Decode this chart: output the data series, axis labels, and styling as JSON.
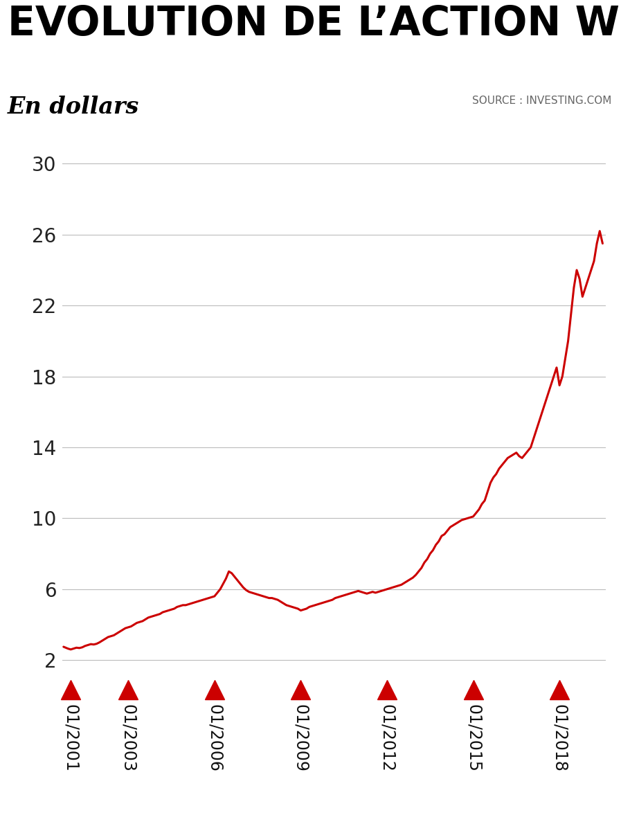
{
  "title": "EVOLUTION DE L’ACTION WDP",
  "subtitle": "En dollars",
  "source": "SOURCE : INVESTING.COM",
  "line_color": "#CC0000",
  "background_color": "#FFFFFF",
  "title_color": "#000000",
  "yticks": [
    2,
    6,
    10,
    14,
    18,
    22,
    26,
    30
  ],
  "ylim": [
    1.5,
    31.5
  ],
  "xlim_start": 2000.7,
  "xlim_end": 2019.6,
  "xtick_years": [
    2001,
    2003,
    2006,
    2009,
    2012,
    2015,
    2018
  ],
  "arrow_color": "#CC0000",
  "grid_color": "#BBBBBB",
  "time_points": [
    2000.75,
    2000.9,
    2001.0,
    2001.1,
    2001.2,
    2001.3,
    2001.4,
    2001.5,
    2001.6,
    2001.7,
    2001.8,
    2001.9,
    2002.0,
    2002.1,
    2002.2,
    2002.3,
    2002.4,
    2002.5,
    2002.6,
    2002.7,
    2002.8,
    2002.9,
    2003.0,
    2003.1,
    2003.2,
    2003.3,
    2003.4,
    2003.5,
    2003.6,
    2003.7,
    2003.8,
    2003.9,
    2004.0,
    2004.1,
    2004.2,
    2004.3,
    2004.4,
    2004.5,
    2004.6,
    2004.7,
    2004.8,
    2004.9,
    2005.0,
    2005.1,
    2005.2,
    2005.3,
    2005.4,
    2005.5,
    2005.6,
    2005.7,
    2005.8,
    2005.9,
    2006.0,
    2006.1,
    2006.2,
    2006.3,
    2006.4,
    2006.5,
    2006.6,
    2006.7,
    2006.8,
    2006.9,
    2007.0,
    2007.1,
    2007.2,
    2007.3,
    2007.4,
    2007.5,
    2007.6,
    2007.7,
    2007.8,
    2007.9,
    2008.0,
    2008.1,
    2008.2,
    2008.3,
    2008.4,
    2008.5,
    2008.6,
    2008.7,
    2008.8,
    2008.9,
    2009.0,
    2009.1,
    2009.2,
    2009.3,
    2009.4,
    2009.5,
    2009.6,
    2009.7,
    2009.8,
    2009.9,
    2010.0,
    2010.1,
    2010.2,
    2010.3,
    2010.4,
    2010.5,
    2010.6,
    2010.7,
    2010.8,
    2010.9,
    2011.0,
    2011.1,
    2011.2,
    2011.3,
    2011.4,
    2011.5,
    2011.6,
    2011.7,
    2011.8,
    2011.9,
    2012.0,
    2012.1,
    2012.2,
    2012.3,
    2012.4,
    2012.5,
    2012.6,
    2012.7,
    2012.8,
    2012.9,
    2013.0,
    2013.1,
    2013.2,
    2013.3,
    2013.4,
    2013.5,
    2013.6,
    2013.7,
    2013.8,
    2013.9,
    2014.0,
    2014.1,
    2014.2,
    2014.3,
    2014.4,
    2014.5,
    2014.6,
    2014.7,
    2014.8,
    2014.9,
    2015.0,
    2015.1,
    2015.2,
    2015.3,
    2015.4,
    2015.5,
    2015.6,
    2015.7,
    2015.8,
    2015.9,
    2016.0,
    2016.1,
    2016.2,
    2016.3,
    2016.4,
    2016.5,
    2016.6,
    2016.7,
    2016.8,
    2016.9,
    2017.0,
    2017.1,
    2017.2,
    2017.3,
    2017.4,
    2017.5,
    2017.6,
    2017.7,
    2017.8,
    2017.9,
    2018.0,
    2018.1,
    2018.2,
    2018.3,
    2018.4,
    2018.5,
    2018.6,
    2018.7,
    2018.8,
    2018.9,
    2019.0,
    2019.1,
    2019.2,
    2019.3,
    2019.4,
    2019.5
  ],
  "values": [
    2.75,
    2.65,
    2.6,
    2.65,
    2.7,
    2.68,
    2.72,
    2.8,
    2.85,
    2.9,
    2.88,
    2.92,
    3.0,
    3.1,
    3.2,
    3.3,
    3.35,
    3.4,
    3.5,
    3.6,
    3.7,
    3.8,
    3.85,
    3.9,
    4.0,
    4.1,
    4.15,
    4.2,
    4.3,
    4.4,
    4.45,
    4.5,
    4.55,
    4.6,
    4.7,
    4.75,
    4.8,
    4.85,
    4.9,
    5.0,
    5.05,
    5.1,
    5.1,
    5.15,
    5.2,
    5.25,
    5.3,
    5.35,
    5.4,
    5.45,
    5.5,
    5.55,
    5.6,
    5.8,
    6.0,
    6.3,
    6.6,
    7.0,
    6.9,
    6.7,
    6.5,
    6.3,
    6.1,
    5.95,
    5.85,
    5.8,
    5.75,
    5.7,
    5.65,
    5.6,
    5.55,
    5.5,
    5.5,
    5.45,
    5.4,
    5.3,
    5.2,
    5.1,
    5.05,
    5.0,
    4.95,
    4.9,
    4.8,
    4.85,
    4.9,
    5.0,
    5.05,
    5.1,
    5.15,
    5.2,
    5.25,
    5.3,
    5.35,
    5.4,
    5.5,
    5.55,
    5.6,
    5.65,
    5.7,
    5.75,
    5.8,
    5.85,
    5.9,
    5.85,
    5.8,
    5.75,
    5.8,
    5.85,
    5.8,
    5.85,
    5.9,
    5.95,
    6.0,
    6.05,
    6.1,
    6.15,
    6.2,
    6.25,
    6.35,
    6.45,
    6.55,
    6.65,
    6.8,
    7.0,
    7.2,
    7.5,
    7.7,
    8.0,
    8.2,
    8.5,
    8.7,
    9.0,
    9.1,
    9.3,
    9.5,
    9.6,
    9.7,
    9.8,
    9.9,
    9.95,
    10.0,
    10.05,
    10.1,
    10.3,
    10.5,
    10.8,
    11.0,
    11.5,
    12.0,
    12.3,
    12.5,
    12.8,
    13.0,
    13.2,
    13.4,
    13.5,
    13.6,
    13.7,
    13.5,
    13.4,
    13.6,
    13.8,
    14.0,
    14.5,
    15.0,
    15.5,
    16.0,
    16.5,
    17.0,
    17.5,
    18.0,
    18.5,
    17.5,
    18.0,
    19.0,
    20.0,
    21.5,
    23.0,
    24.0,
    23.5,
    22.5,
    23.0,
    23.5,
    24.0,
    24.5,
    25.5,
    26.2,
    25.5
  ]
}
